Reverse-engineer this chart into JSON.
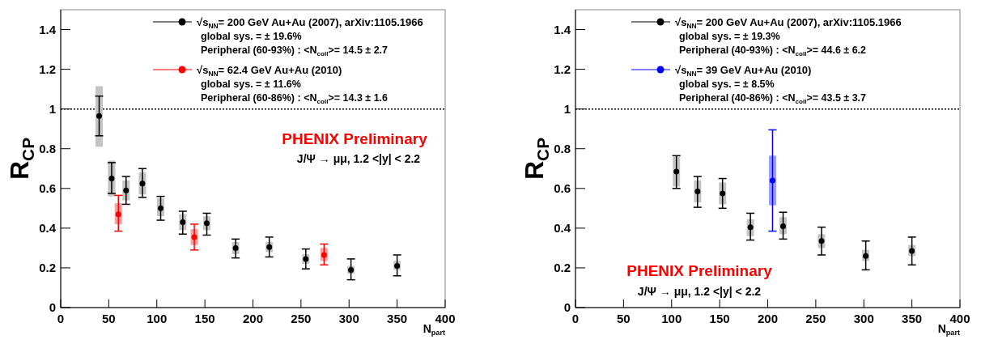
{
  "chart_data": [
    {
      "type": "scatter",
      "xlabel": "N$_{part}$",
      "ylabel": "R$_{CP}$",
      "xlim": [
        0,
        400
      ],
      "xticks": [
        0,
        50,
        100,
        150,
        200,
        250,
        300,
        350,
        400
      ],
      "ylim": [
        0,
        1.5
      ],
      "yticks": [
        0,
        0.2,
        0.4,
        0.6,
        0.8,
        1,
        1.2,
        1.4
      ],
      "marker": "circle",
      "legend": "top",
      "ref_lines": [
        {
          "axis": "y",
          "value": 1,
          "line_style": "dotted"
        }
      ],
      "annotations": [
        "global sys. = ± 19.6%",
        "Peripheral (60-93%) : <N$_{coll}$>= 14.5 ± 2.7",
        "global sys. = ± 11.6%",
        "Peripheral (60-86%) : <N$_{coll}$>= 14.3 ± 1.6",
        "PHENIX Preliminary",
        "J/Ψ → μμ, 1.2 <|y| < 2.2"
      ],
      "series": [
        {
          "type": "bar",
          "color": "#c4c4c4",
          "x": [
            40,
            53,
            68,
            85,
            104,
            127,
            152,
            182,
            217,
            255,
            302,
            350
          ],
          "base": [
            0.81,
            0.56,
            0.54,
            0.57,
            0.46,
            0.39,
            0.39,
            0.27,
            0.28,
            0.22,
            0.17,
            0.19
          ],
          "values": [
            0.305,
            0.18,
            0.1,
            0.11,
            0.09,
            0.08,
            0.07,
            0.06,
            0.05,
            0.05,
            0.04,
            0.045
          ]
        },
        {
          "type": "bar",
          "color": "#f5a0a0",
          "x": [
            60,
            139,
            274
          ],
          "base": [
            0.42,
            0.315,
            0.235
          ],
          "values": [
            0.105,
            0.08,
            0.065
          ]
        },
        {
          "name": "√s$_{NN}$= 200 GeV Au+Au (2007), arXiv:1105.1966",
          "color": "#000000",
          "x": [
            40,
            53,
            68,
            85,
            104,
            127,
            152,
            182,
            217,
            255,
            302,
            350
          ],
          "values": [
            0.965,
            0.65,
            0.59,
            0.625,
            0.5,
            0.43,
            0.425,
            0.3,
            0.305,
            0.245,
            0.19,
            0.21
          ],
          "errors": [
            [
              0.865,
              1.065
            ],
            [
              0.575,
              0.73
            ],
            [
              0.52,
              0.66
            ],
            [
              0.555,
              0.7
            ],
            [
              0.44,
              0.56
            ],
            [
              0.37,
              0.485
            ],
            [
              0.365,
              0.475
            ],
            [
              0.25,
              0.345
            ],
            [
              0.255,
              0.355
            ],
            [
              0.195,
              0.295
            ],
            [
              0.14,
              0.245
            ],
            [
              0.16,
              0.265
            ]
          ]
        },
        {
          "name": "√s$_{NN}$= 62.4 GeV Au+Au (2010)",
          "color": "#ff0000",
          "x": [
            60,
            139,
            274
          ],
          "values": [
            0.47,
            0.355,
            0.265
          ],
          "errors": [
            [
              0.385,
              0.565
            ],
            [
              0.29,
              0.42
            ],
            [
              0.215,
              0.32
            ]
          ]
        }
      ]
    },
    {
      "type": "scatter",
      "xlabel": "N$_{part}$",
      "ylabel": "R$_{CP}$",
      "xlim": [
        0,
        400
      ],
      "xticks": [
        0,
        50,
        100,
        150,
        200,
        250,
        300,
        350,
        400
      ],
      "ylim": [
        0,
        1.5
      ],
      "yticks": [
        0,
        0.2,
        0.4,
        0.6,
        0.8,
        1,
        1.2,
        1.4
      ],
      "marker": "circle",
      "legend": "top",
      "ref_lines": [
        {
          "axis": "y",
          "value": 1,
          "line_style": "dotted"
        }
      ],
      "annotations": [
        "global sys. = ± 19.3%",
        "Peripheral (40-93%) : <N$_{coll}$>= 44.6 ± 6.2",
        "global sys. =  ± 8.5%",
        "Peripheral (40-86%) : <N$_{coll}$>= 43.5 ± 3.7",
        "PHENIX Preliminary",
        "J/Ψ → μμ, 1.2 <|y| < 2.2"
      ],
      "series": [
        {
          "type": "bar",
          "color": "#c4c4c4",
          "x": [
            105,
            127,
            153,
            182,
            216,
            256,
            302,
            350
          ],
          "base": [
            0.61,
            0.53,
            0.52,
            0.36,
            0.37,
            0.3,
            0.235,
            0.26
          ],
          "values": [
            0.15,
            0.11,
            0.11,
            0.085,
            0.085,
            0.07,
            0.055,
            0.055
          ]
        },
        {
          "type": "bar",
          "color": "#9a9aff",
          "x": [
            205
          ],
          "base": [
            0.515
          ],
          "values": [
            0.25
          ]
        },
        {
          "name": "√s$_{NN}$= 200 GeV Au+Au (2007), arXiv:1105.1966",
          "color": "#000000",
          "x": [
            105,
            127,
            153,
            182,
            216,
            256,
            302,
            350
          ],
          "values": [
            0.685,
            0.585,
            0.575,
            0.405,
            0.41,
            0.335,
            0.26,
            0.285
          ],
          "errors": [
            [
              0.6,
              0.765
            ],
            [
              0.505,
              0.66
            ],
            [
              0.5,
              0.65
            ],
            [
              0.34,
              0.475
            ],
            [
              0.345,
              0.48
            ],
            [
              0.265,
              0.405
            ],
            [
              0.19,
              0.335
            ],
            [
              0.215,
              0.355
            ]
          ]
        },
        {
          "name": "√s$_{NN}$= 39 GeV Au+Au (2010)",
          "color": "#0000ff",
          "x": [
            205
          ],
          "values": [
            0.64
          ],
          "errors": [
            [
              0.385,
              0.895
            ]
          ]
        }
      ]
    }
  ]
}
